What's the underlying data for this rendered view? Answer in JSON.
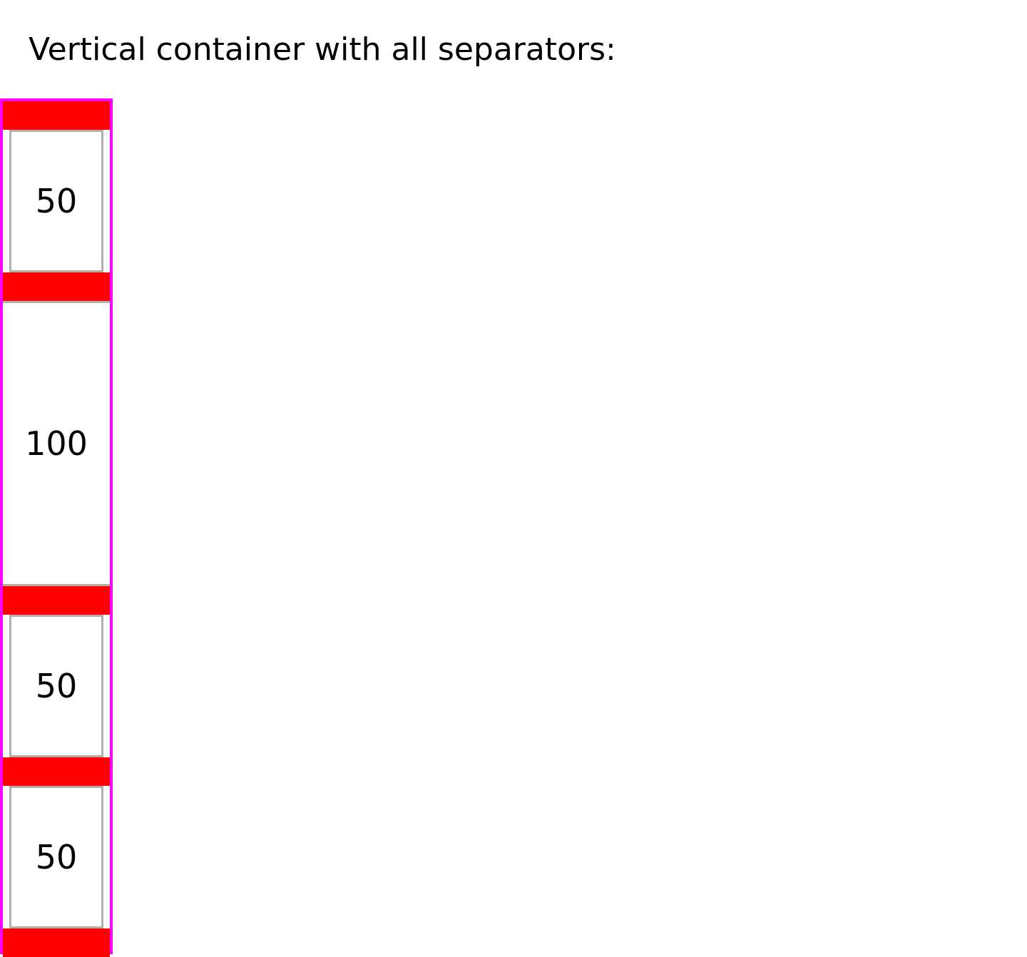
{
  "heading": "Vertical container with all separators:",
  "container": {
    "items": [
      {
        "label": "50"
      },
      {
        "label": "100"
      },
      {
        "label": "50"
      },
      {
        "label": "50"
      }
    ]
  },
  "colors": {
    "container_border": "#ff00ff",
    "separator": "#ff0000",
    "item_border": "#b0b0b0"
  }
}
